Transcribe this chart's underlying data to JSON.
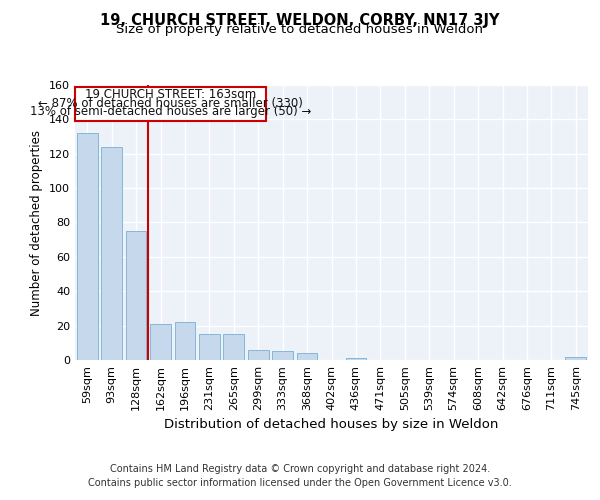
{
  "title": "19, CHURCH STREET, WELDON, CORBY, NN17 3JY",
  "subtitle": "Size of property relative to detached houses in Weldon",
  "xlabel": "Distribution of detached houses by size in Weldon",
  "ylabel": "Number of detached properties",
  "categories": [
    "59sqm",
    "93sqm",
    "128sqm",
    "162sqm",
    "196sqm",
    "231sqm",
    "265sqm",
    "299sqm",
    "333sqm",
    "368sqm",
    "402sqm",
    "436sqm",
    "471sqm",
    "505sqm",
    "539sqm",
    "574sqm",
    "608sqm",
    "642sqm",
    "676sqm",
    "711sqm",
    "745sqm"
  ],
  "values": [
    132,
    124,
    75,
    21,
    22,
    15,
    15,
    6,
    5,
    4,
    0,
    1,
    0,
    0,
    0,
    0,
    0,
    0,
    0,
    0,
    2
  ],
  "bar_color": "#c5d8ec",
  "bar_edge_color": "#7aafd4",
  "background_color": "#edf2f9",
  "grid_color": "#ffffff",
  "ann_line1": "19 CHURCH STREET: 163sqm",
  "ann_line2": "← 87% of detached houses are smaller (330)",
  "ann_line3": "13% of semi-detached houses are larger (50) →",
  "vline_color": "#cc0000",
  "annotation_box_color": "#cc0000",
  "ylim": [
    0,
    160
  ],
  "yticks": [
    0,
    20,
    40,
    60,
    80,
    100,
    120,
    140,
    160
  ],
  "footer_line1": "Contains HM Land Registry data © Crown copyright and database right 2024.",
  "footer_line2": "Contains public sector information licensed under the Open Government Licence v3.0.",
  "title_fontsize": 10.5,
  "subtitle_fontsize": 9.5,
  "xlabel_fontsize": 9.5,
  "ylabel_fontsize": 8.5,
  "tick_fontsize": 8,
  "ann_fontsize": 8.5,
  "footer_fontsize": 7
}
